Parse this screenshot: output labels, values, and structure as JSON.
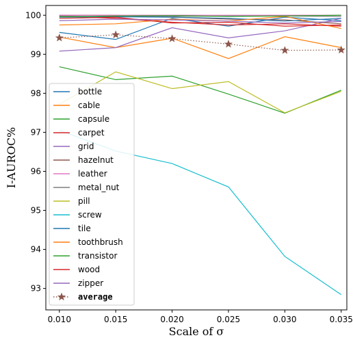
{
  "chart_data": {
    "type": "line",
    "xlabel": "Scale of σ",
    "ylabel": "I-AUROC%",
    "x": [
      0.01,
      0.015,
      0.02,
      0.025,
      0.03,
      0.035
    ],
    "x_tick_labels": [
      "0.010",
      "0.015",
      "0.020",
      "0.025",
      "0.030",
      "0.035"
    ],
    "y_ticks": [
      93,
      94,
      95,
      96,
      97,
      98,
      99,
      100
    ],
    "y_tick_labels": [
      "93",
      "94",
      "95",
      "96",
      "97",
      "98",
      "99",
      "100"
    ],
    "xlim": [
      0.0088,
      0.0355
    ],
    "ylim": [
      92.45,
      100.25
    ],
    "grid": false,
    "legend_position": "lower-left",
    "series": [
      {
        "name": "bottle",
        "color": "#1f77b4",
        "style": "solid",
        "values": [
          99.56,
          99.38,
          99.92,
          99.72,
          99.95,
          99.86
        ]
      },
      {
        "name": "cable",
        "color": "#ff7f0e",
        "style": "solid",
        "values": [
          99.44,
          99.17,
          99.41,
          98.89,
          99.45,
          99.17
        ]
      },
      {
        "name": "capsule",
        "color": "#2ca02c",
        "style": "solid",
        "values": [
          98.68,
          98.35,
          98.44,
          97.98,
          97.49,
          98.08
        ]
      },
      {
        "name": "carpet",
        "color": "#d62728",
        "style": "solid",
        "values": [
          99.97,
          99.92,
          99.82,
          99.75,
          99.78,
          99.72
        ]
      },
      {
        "name": "grid",
        "color": "#9467bd",
        "style": "solid",
        "values": [
          99.08,
          99.17,
          99.68,
          99.42,
          99.6,
          99.92
        ]
      },
      {
        "name": "hazelnut",
        "color": "#8c564b",
        "style": "solid",
        "values": [
          100.0,
          100.0,
          99.95,
          99.9,
          99.88,
          99.78
        ]
      },
      {
        "name": "leather",
        "color": "#e377c2",
        "style": "solid",
        "values": [
          100.0,
          100.0,
          100.0,
          100.0,
          100.0,
          100.0
        ]
      },
      {
        "name": "metal_nut",
        "color": "#7f7f7f",
        "style": "solid",
        "values": [
          99.98,
          99.96,
          99.97,
          99.98,
          99.98,
          99.97
        ]
      },
      {
        "name": "pill",
        "color": "#bcbd22",
        "style": "solid",
        "values": [
          97.72,
          98.55,
          98.12,
          98.3,
          97.5,
          98.05
        ]
      },
      {
        "name": "screw",
        "color": "#17becf",
        "style": "solid",
        "values": [
          97.05,
          96.52,
          96.2,
          95.6,
          93.82,
          92.84
        ]
      },
      {
        "name": "tile",
        "color": "#1f77b4",
        "style": "solid",
        "values": [
          99.95,
          99.96,
          99.95,
          99.92,
          99.85,
          99.92
        ]
      },
      {
        "name": "toothbrush",
        "color": "#ff7f0e",
        "style": "solid",
        "values": [
          99.75,
          99.78,
          99.9,
          99.85,
          99.97,
          99.66
        ]
      },
      {
        "name": "transistor",
        "color": "#2ca02c",
        "style": "solid",
        "values": [
          99.96,
          99.98,
          99.99,
          99.97,
          99.98,
          100.0
        ]
      },
      {
        "name": "wood",
        "color": "#d62728",
        "style": "solid",
        "values": [
          99.92,
          99.95,
          99.8,
          99.82,
          99.72,
          99.75
        ]
      },
      {
        "name": "zipper",
        "color": "#9467bd",
        "style": "solid",
        "values": [
          99.86,
          99.9,
          99.88,
          99.85,
          99.8,
          99.84
        ]
      },
      {
        "name": "average",
        "color": "#8c564b",
        "style": "dotted",
        "marker": "star",
        "values": [
          99.42,
          99.5,
          99.4,
          99.26,
          99.1,
          99.11
        ]
      }
    ]
  }
}
